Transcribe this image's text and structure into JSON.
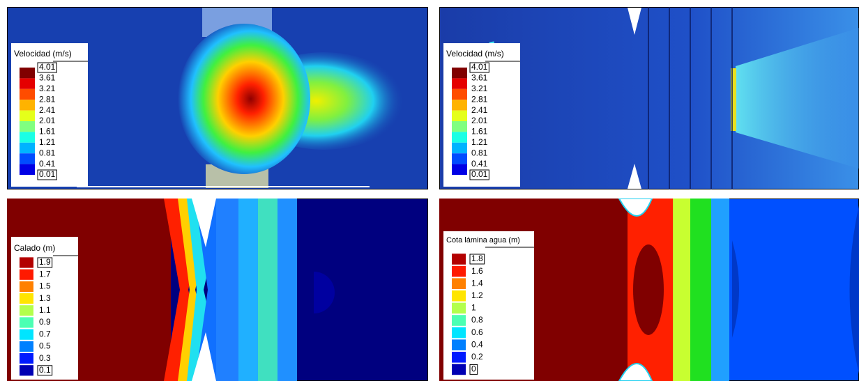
{
  "panels": [
    {
      "legend": {
        "title": "Velocidad (m/s)",
        "labels": [
          "4.01",
          "3.61",
          "3.21",
          "2.81",
          "2.41",
          "2.01",
          "1.61",
          "1.21",
          "0.81",
          "0.41",
          "0.01"
        ]
      }
    },
    {
      "legend": {
        "title": "Velocidad (m/s)",
        "labels": [
          "4.01",
          "3.61",
          "3.21",
          "2.81",
          "2.41",
          "2.01",
          "1.61",
          "1.21",
          "0.81",
          "0.41",
          "0.01"
        ]
      }
    },
    {
      "legend": {
        "title": "Calado (m)",
        "labels": [
          "1.9",
          "1.7",
          "1.5",
          "1.3",
          "1.1",
          "0.9",
          "0.7",
          "0.5",
          "0.3",
          "0.1"
        ]
      }
    },
    {
      "legend": {
        "title": "Cota lámina agua (m)",
        "labels": [
          "1.8",
          "1.6",
          "1.4",
          "1.2",
          "1",
          "0.8",
          "0.6",
          "0.4",
          "0.2",
          "0"
        ]
      }
    }
  ]
}
